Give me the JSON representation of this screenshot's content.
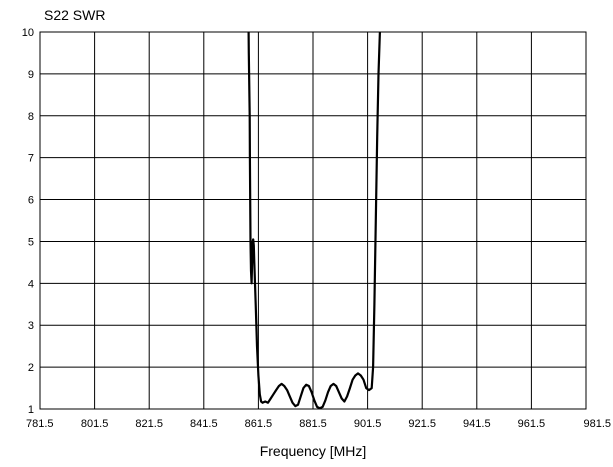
{
  "chart_data": {
    "type": "line",
    "title": "S22 SWR",
    "xlabel": "Frequency [MHz]",
    "ylabel": "",
    "xlim": [
      781.5,
      981.5
    ],
    "ylim": [
      1,
      10
    ],
    "x_ticks": [
      "781.5",
      "801.5",
      "821.5",
      "841.5",
      "861.5",
      "881.5",
      "901.5",
      "921.5",
      "941.5",
      "961.5",
      "981.5"
    ],
    "y_ticks": [
      "1",
      "2",
      "3",
      "4",
      "5",
      "6",
      "7",
      "8",
      "9",
      "10"
    ],
    "grid": true,
    "colors": {
      "line": "#000000",
      "grid": "#000000",
      "background": "#ffffff"
    },
    "series": [
      {
        "x": [
          857.9,
          858.0,
          858.1,
          858.2,
          858.3,
          858.4,
          858.5,
          858.6,
          858.8,
          859.0,
          859.2,
          859.4,
          859.6,
          859.8,
          860.0,
          860.5,
          861.0,
          861.5,
          862.0,
          862.5,
          863.0,
          864.0,
          865.0,
          866.0,
          867.0,
          868.0,
          869.0,
          870.0,
          871.0,
          872.0,
          873.0,
          874.0,
          875.0,
          876.0,
          877.0,
          878.0,
          879.0,
          880.0,
          881.0,
          882.0,
          883.0,
          884.0,
          885.0,
          886.0,
          887.0,
          888.0,
          889.0,
          890.0,
          891.0,
          892.0,
          893.0,
          894.0,
          895.0,
          896.0,
          897.0,
          898.0,
          899.0,
          900.0,
          901.0,
          902.0,
          903.0,
          903.5,
          904.0,
          904.5,
          905.0,
          905.5,
          906.0
        ],
        "y": [
          10.0,
          9.5,
          9.0,
          8.5,
          8.0,
          7.0,
          6.0,
          5.0,
          4.3,
          4.0,
          4.5,
          5.0,
          5.05,
          4.9,
          4.5,
          3.5,
          2.5,
          1.8,
          1.35,
          1.18,
          1.15,
          1.18,
          1.15,
          1.25,
          1.35,
          1.45,
          1.55,
          1.6,
          1.55,
          1.45,
          1.3,
          1.15,
          1.07,
          1.1,
          1.3,
          1.5,
          1.58,
          1.55,
          1.4,
          1.2,
          1.05,
          1.02,
          1.05,
          1.2,
          1.4,
          1.55,
          1.6,
          1.55,
          1.4,
          1.25,
          1.18,
          1.3,
          1.5,
          1.7,
          1.8,
          1.85,
          1.8,
          1.7,
          1.5,
          1.45,
          1.5,
          2.0,
          3.5,
          5.5,
          7.5,
          9.0,
          10.0
        ]
      }
    ]
  }
}
